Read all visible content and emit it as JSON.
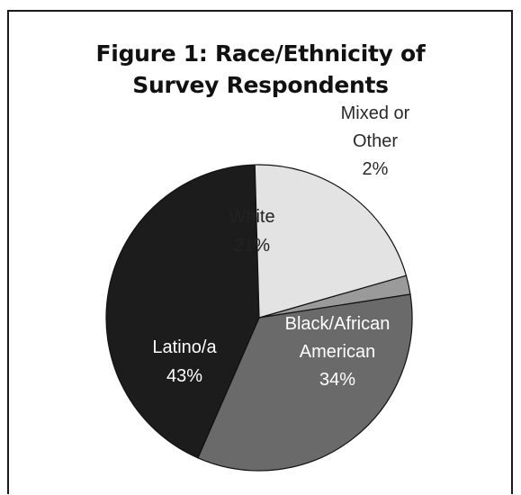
{
  "chart_data": {
    "type": "pie",
    "title_lines": [
      "Figure 1: Race/Ethnicity of",
      "Survey Respondents"
    ],
    "slices": [
      {
        "name": "Mixed or Other",
        "value": 2,
        "color": "#9a9a9a",
        "label_lines": [
          "Mixed or",
          "Other",
          "2%"
        ],
        "label_color": "#2a2a2a"
      },
      {
        "name": "Black/African American",
        "value": 34,
        "color": "#6a6a6a",
        "label_lines": [
          "Black/African",
          "American",
          "34%"
        ],
        "label_color": "#ffffff"
      },
      {
        "name": "Latino/a",
        "value": 43,
        "color": "#1c1c1c",
        "label_lines": [
          "Latino/a",
          "43%"
        ],
        "label_color": "#ffffff"
      },
      {
        "name": "White",
        "value": 21,
        "color": "#e3e3e3",
        "label_lines": [
          "White",
          "21%"
        ],
        "label_color": "#222222"
      }
    ]
  }
}
